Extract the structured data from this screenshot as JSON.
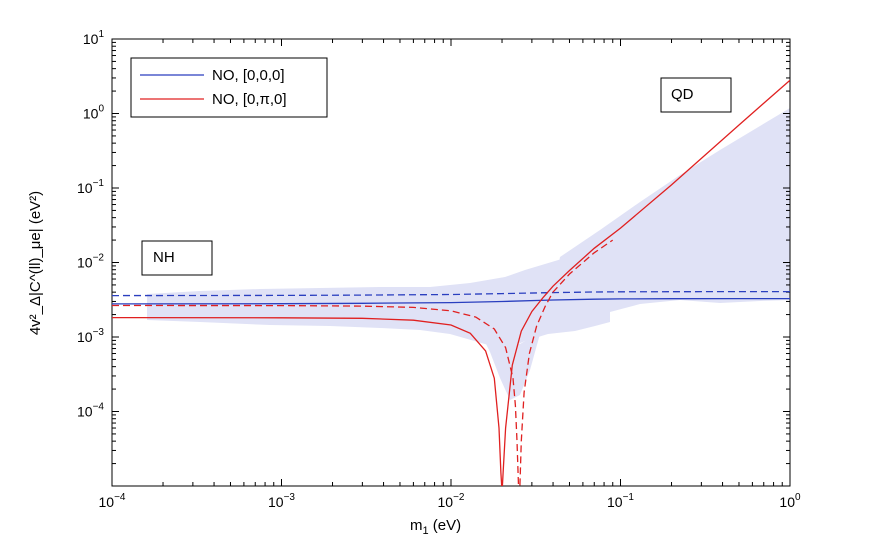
{
  "chart_data": {
    "type": "line",
    "title": "",
    "xlabel": "m",
    "xlabel_sub": "1",
    "xlabel_unit": " (eV)",
    "ylabel": "4v²_Δ|C^(ll)_μe| (eV²)",
    "xscale": "log",
    "yscale": "log",
    "xlim": [
      0.0001,
      1
    ],
    "ylim": [
      1e-05,
      10
    ],
    "x_ticks": [
      {
        "base": "10",
        "exp": "−4"
      },
      {
        "base": "10",
        "exp": "−3"
      },
      {
        "base": "10",
        "exp": "−2"
      },
      {
        "base": "10",
        "exp": "−1"
      },
      {
        "base": "10",
        "exp": "0"
      }
    ],
    "y_ticks": [
      {
        "base": "10",
        "exp": "−4"
      },
      {
        "base": "10",
        "exp": "−3"
      },
      {
        "base": "10",
        "exp": "−2"
      },
      {
        "base": "10",
        "exp": "−1"
      },
      {
        "base": "10",
        "exp": "0"
      },
      {
        "base": "10",
        "exp": "1"
      }
    ],
    "legend": {
      "placement": "top-left",
      "entries": [
        {
          "label": "NO, [0,0,0]",
          "color": "#2a3fbf"
        },
        {
          "label": "NO, [0,π,0]",
          "color": "#e02020"
        }
      ]
    },
    "annotations": [
      {
        "text": "NH",
        "x": 0.00017,
        "y": 0.011
      },
      {
        "text": "QD",
        "x": 0.25,
        "y": 1.25
      }
    ],
    "series": [
      {
        "name": "NO, [0,0,0] solid",
        "color": "#2a3fbf",
        "dash": "solid",
        "x": [
          0.0001,
          0.001,
          0.003,
          0.01,
          0.02,
          0.04,
          0.07,
          0.1,
          0.2,
          0.5,
          1
        ],
        "y": [
          0.00278,
          0.0028,
          0.00283,
          0.0029,
          0.003,
          0.00314,
          0.00322,
          0.00325,
          0.00327,
          0.00328,
          0.00328
        ]
      },
      {
        "name": "NO, [0,0,0] dashed",
        "color": "#2a3fbf",
        "dash": "dashed",
        "x": [
          0.0001,
          0.001,
          0.003,
          0.01,
          0.02,
          0.04,
          0.07,
          0.1,
          0.2,
          0.5,
          1
        ],
        "y": [
          0.0036,
          0.00362,
          0.00365,
          0.00372,
          0.00382,
          0.00395,
          0.00402,
          0.00404,
          0.00406,
          0.00407,
          0.00407
        ]
      },
      {
        "name": "NO, [0,π,0] solid",
        "color": "#e02020",
        "dash": "solid",
        "x": [
          0.0001,
          0.001,
          0.003,
          0.006,
          0.01,
          0.013,
          0.016,
          0.018,
          0.0192,
          0.0197,
          0.0199,
          0.0201,
          0.0203,
          0.021,
          0.023,
          0.026,
          0.03,
          0.035,
          0.04,
          0.05,
          0.07,
          0.1,
          0.2,
          0.5,
          1
        ],
        "y": [
          0.00182,
          0.00181,
          0.00178,
          0.00168,
          0.00145,
          0.00112,
          0.00065,
          0.00028,
          6e-05,
          1.5e-05,
          1e-05,
          1e-05,
          1.5e-05,
          6e-05,
          0.00042,
          0.0012,
          0.0022,
          0.0034,
          0.0048,
          0.0078,
          0.0155,
          0.029,
          0.11,
          0.7,
          2.8
        ]
      },
      {
        "name": "NO, [0,π,0] dashed",
        "color": "#e02020",
        "dash": "dashed",
        "x": [
          0.0001,
          0.001,
          0.003,
          0.006,
          0.01,
          0.014,
          0.018,
          0.021,
          0.0232,
          0.024,
          0.0245,
          0.025,
          0.0255,
          0.026,
          0.027,
          0.029,
          0.032,
          0.036,
          0.04,
          0.05,
          0.07,
          0.09
        ],
        "y": [
          0.00265,
          0.00264,
          0.0026,
          0.0025,
          0.00225,
          0.00185,
          0.00128,
          0.00072,
          0.00028,
          0.00012,
          4e-05,
          1e-05,
          1e-05,
          4e-05,
          0.00018,
          0.0006,
          0.0014,
          0.0026,
          0.004,
          0.007,
          0.0135,
          0.02
        ]
      }
    ]
  }
}
